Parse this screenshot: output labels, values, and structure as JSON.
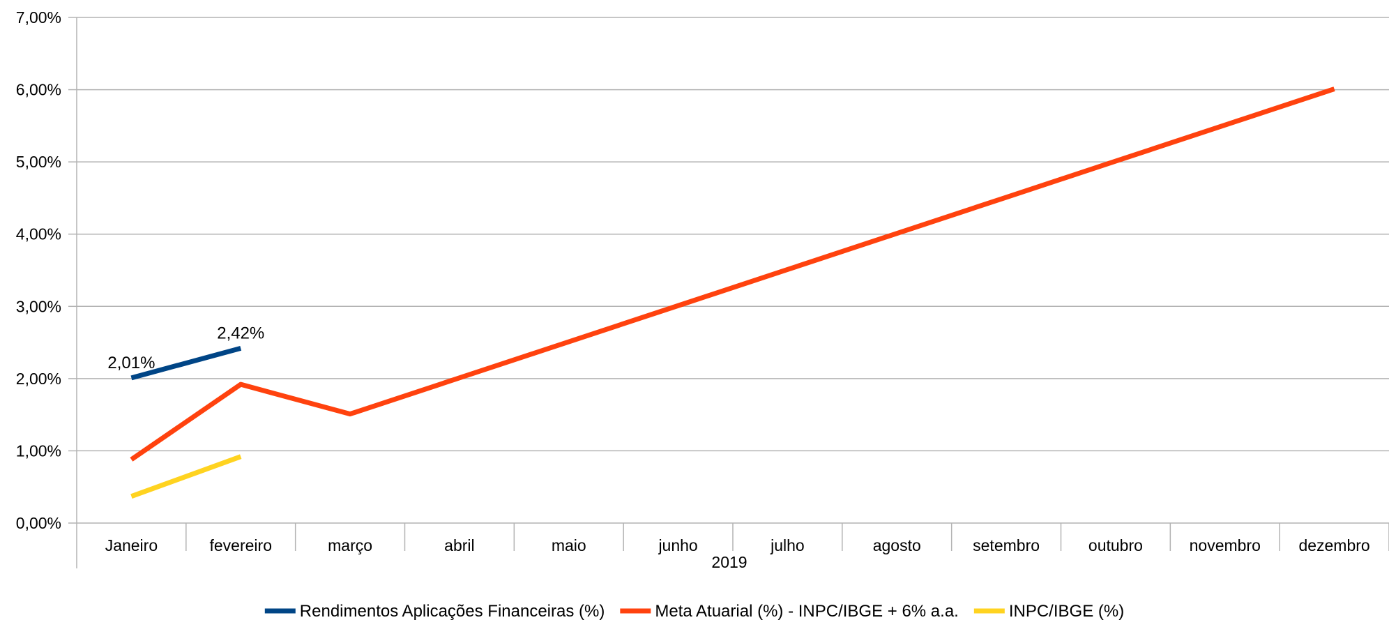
{
  "chart_data": {
    "type": "line",
    "categories": [
      "Janeiro",
      "fevereiro",
      "março",
      "abril",
      "maio",
      "junho",
      "julho",
      "agosto",
      "setembro",
      "outubro",
      "novembro",
      "dezembro"
    ],
    "group_label": "2019",
    "ylim": [
      0,
      7
    ],
    "ytick_labels": [
      "0,00%",
      "1,00%",
      "2,00%",
      "3,00%",
      "4,00%",
      "5,00%",
      "6,00%",
      "7,00%"
    ],
    "grid": true,
    "legend_position": "bottom",
    "series": [
      {
        "name": "Rendimentos Aplicações Financeiras (%)",
        "color": "#004586",
        "values": [
          2.01,
          2.42,
          null,
          null,
          null,
          null,
          null,
          null,
          null,
          null,
          null,
          null
        ],
        "data_labels": [
          "2,01%",
          "2,42%",
          "",
          "",
          "",
          "",
          "",
          "",
          "",
          "",
          "",
          ""
        ]
      },
      {
        "name": "Meta Atuarial (%) - INPC/IBGE + 6% a.a.",
        "color": "#FF420E",
        "values": [
          0.88,
          1.92,
          1.51,
          2.01,
          2.51,
          3.01,
          3.51,
          4.01,
          4.51,
          5.01,
          5.51,
          6.01
        ]
      },
      {
        "name": "INPC/IBGE (%)",
        "color": "#FFD320",
        "values": [
          0.37,
          0.92,
          null,
          null,
          null,
          null,
          null,
          null,
          null,
          null,
          null,
          null
        ]
      }
    ]
  }
}
